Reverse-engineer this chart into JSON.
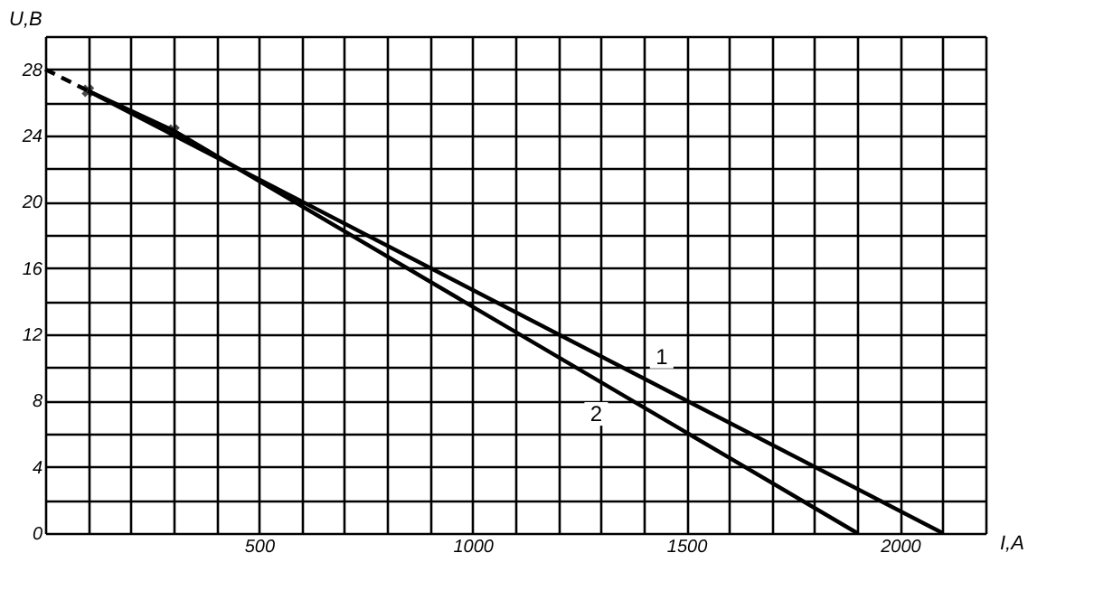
{
  "chart_data": {
    "type": "line",
    "xlabel": "I,A",
    "ylabel": "U,B",
    "xlim": [
      0,
      2200
    ],
    "ylim": [
      0,
      30
    ],
    "xticks": [
      {
        "value": 0,
        "label": null
      },
      {
        "value": 100,
        "label": null
      },
      {
        "value": 200,
        "label": null
      },
      {
        "value": 300,
        "label": null
      },
      {
        "value": 400,
        "label": null
      },
      500,
      {
        "value": 600,
        "label": null
      },
      {
        "value": 700,
        "label": null
      },
      {
        "value": 800,
        "label": null
      },
      {
        "value": 900,
        "label": null
      },
      1000,
      {
        "value": 1100,
        "label": null
      },
      {
        "value": 1200,
        "label": null
      },
      {
        "value": 1300,
        "label": null
      },
      {
        "value": 1400,
        "label": null
      },
      1500,
      {
        "value": 1600,
        "label": null
      },
      {
        "value": 1700,
        "label": null
      },
      {
        "value": 1800,
        "label": null
      },
      {
        "value": 1900,
        "label": null
      },
      2000,
      {
        "value": 2100,
        "label": null
      },
      {
        "value": 2200,
        "label": null
      }
    ],
    "yticks": [
      0,
      {
        "value": 2,
        "label": null
      },
      4,
      {
        "value": 6,
        "label": null
      },
      8,
      {
        "value": 10,
        "label": null
      },
      12,
      {
        "value": 14,
        "label": null
      },
      16,
      {
        "value": 18,
        "label": null
      },
      20,
      {
        "value": 22,
        "label": null
      },
      24,
      {
        "value": 26,
        "label": null
      },
      28,
      {
        "value": 30,
        "label": null
      }
    ],
    "grid": true,
    "legend": false,
    "series": [
      {
        "name": "1",
        "color": "#000000",
        "x": [
          100,
          2100
        ],
        "values": [
          26.7,
          0
        ],
        "line_style": "solid",
        "marker": "none"
      },
      {
        "name": "2",
        "color": "#000000",
        "x": [
          100,
          300,
          1900
        ],
        "values": [
          26.7,
          24.3,
          0
        ],
        "line_style": "solid",
        "marker": "none"
      },
      {
        "color": "#000000",
        "x": [
          0,
          100
        ],
        "values": [
          28,
          26.7
        ],
        "line_style": "dashed",
        "marker": "none"
      },
      {
        "type": "scatter",
        "color": "#000000",
        "x": [
          100,
          300
        ],
        "values": [
          26.7,
          24.3
        ],
        "marker": "cross"
      }
    ]
  }
}
